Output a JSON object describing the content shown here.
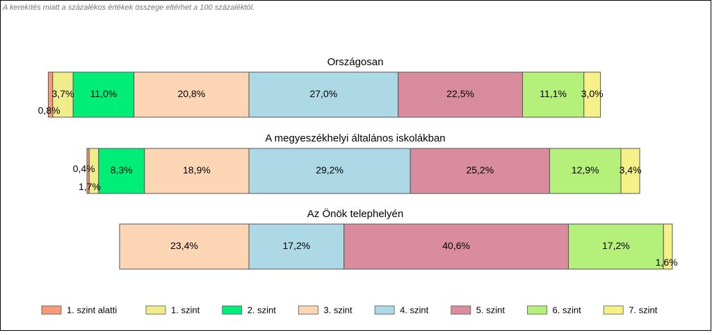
{
  "chart_data": {
    "type": "bar",
    "orientation": "horizontal",
    "stacking": "diverging",
    "note": "A kerekítés miatt a százalékos értékek összege eltérhet a 100 százaléktól.",
    "categories": [
      "Országosan",
      "A megyeszékhelyi általános iskolákban",
      "Az Önök telephelyén"
    ],
    "series": [
      {
        "name": "1. szint alatti",
        "color": "#f79a7a",
        "values": [
          0.8,
          0.4,
          null
        ],
        "value_labels": [
          "0,8%",
          "0,4%",
          null
        ]
      },
      {
        "name": "1. szint",
        "color": "#f0ec8c",
        "values": [
          3.7,
          1.7,
          null
        ],
        "value_labels": [
          "3,7%",
          "1,7%",
          null
        ]
      },
      {
        "name": "2. szint",
        "color": "#00ee77",
        "values": [
          11.0,
          8.3,
          null
        ],
        "value_labels": [
          "11,0%",
          "8,3%",
          null
        ]
      },
      {
        "name": "3. szint",
        "color": "#fcd5b5",
        "values": [
          20.8,
          18.9,
          23.4
        ],
        "value_labels": [
          "20,8%",
          "18,9%",
          "23,4%"
        ]
      },
      {
        "name": "4. szint",
        "color": "#add8e6",
        "values": [
          27.0,
          29.2,
          17.2
        ],
        "value_labels": [
          "27,0%",
          "29,2%",
          "17,2%"
        ]
      },
      {
        "name": "5. szint",
        "color": "#d98c9e",
        "values": [
          22.5,
          25.2,
          40.6
        ],
        "value_labels": [
          "22,5%",
          "25,2%",
          "40,6%"
        ]
      },
      {
        "name": "6. szint",
        "color": "#b4f07a",
        "values": [
          11.1,
          12.9,
          17.2
        ],
        "value_labels": [
          "11,1%",
          "12,9%",
          "17,2%"
        ]
      },
      {
        "name": "7. szint",
        "color": "#f6f088",
        "values": [
          3.0,
          3.4,
          1.6
        ],
        "value_labels": [
          "3,0%",
          "3,4%",
          "1,6%"
        ]
      }
    ],
    "legend": "bottom"
  }
}
